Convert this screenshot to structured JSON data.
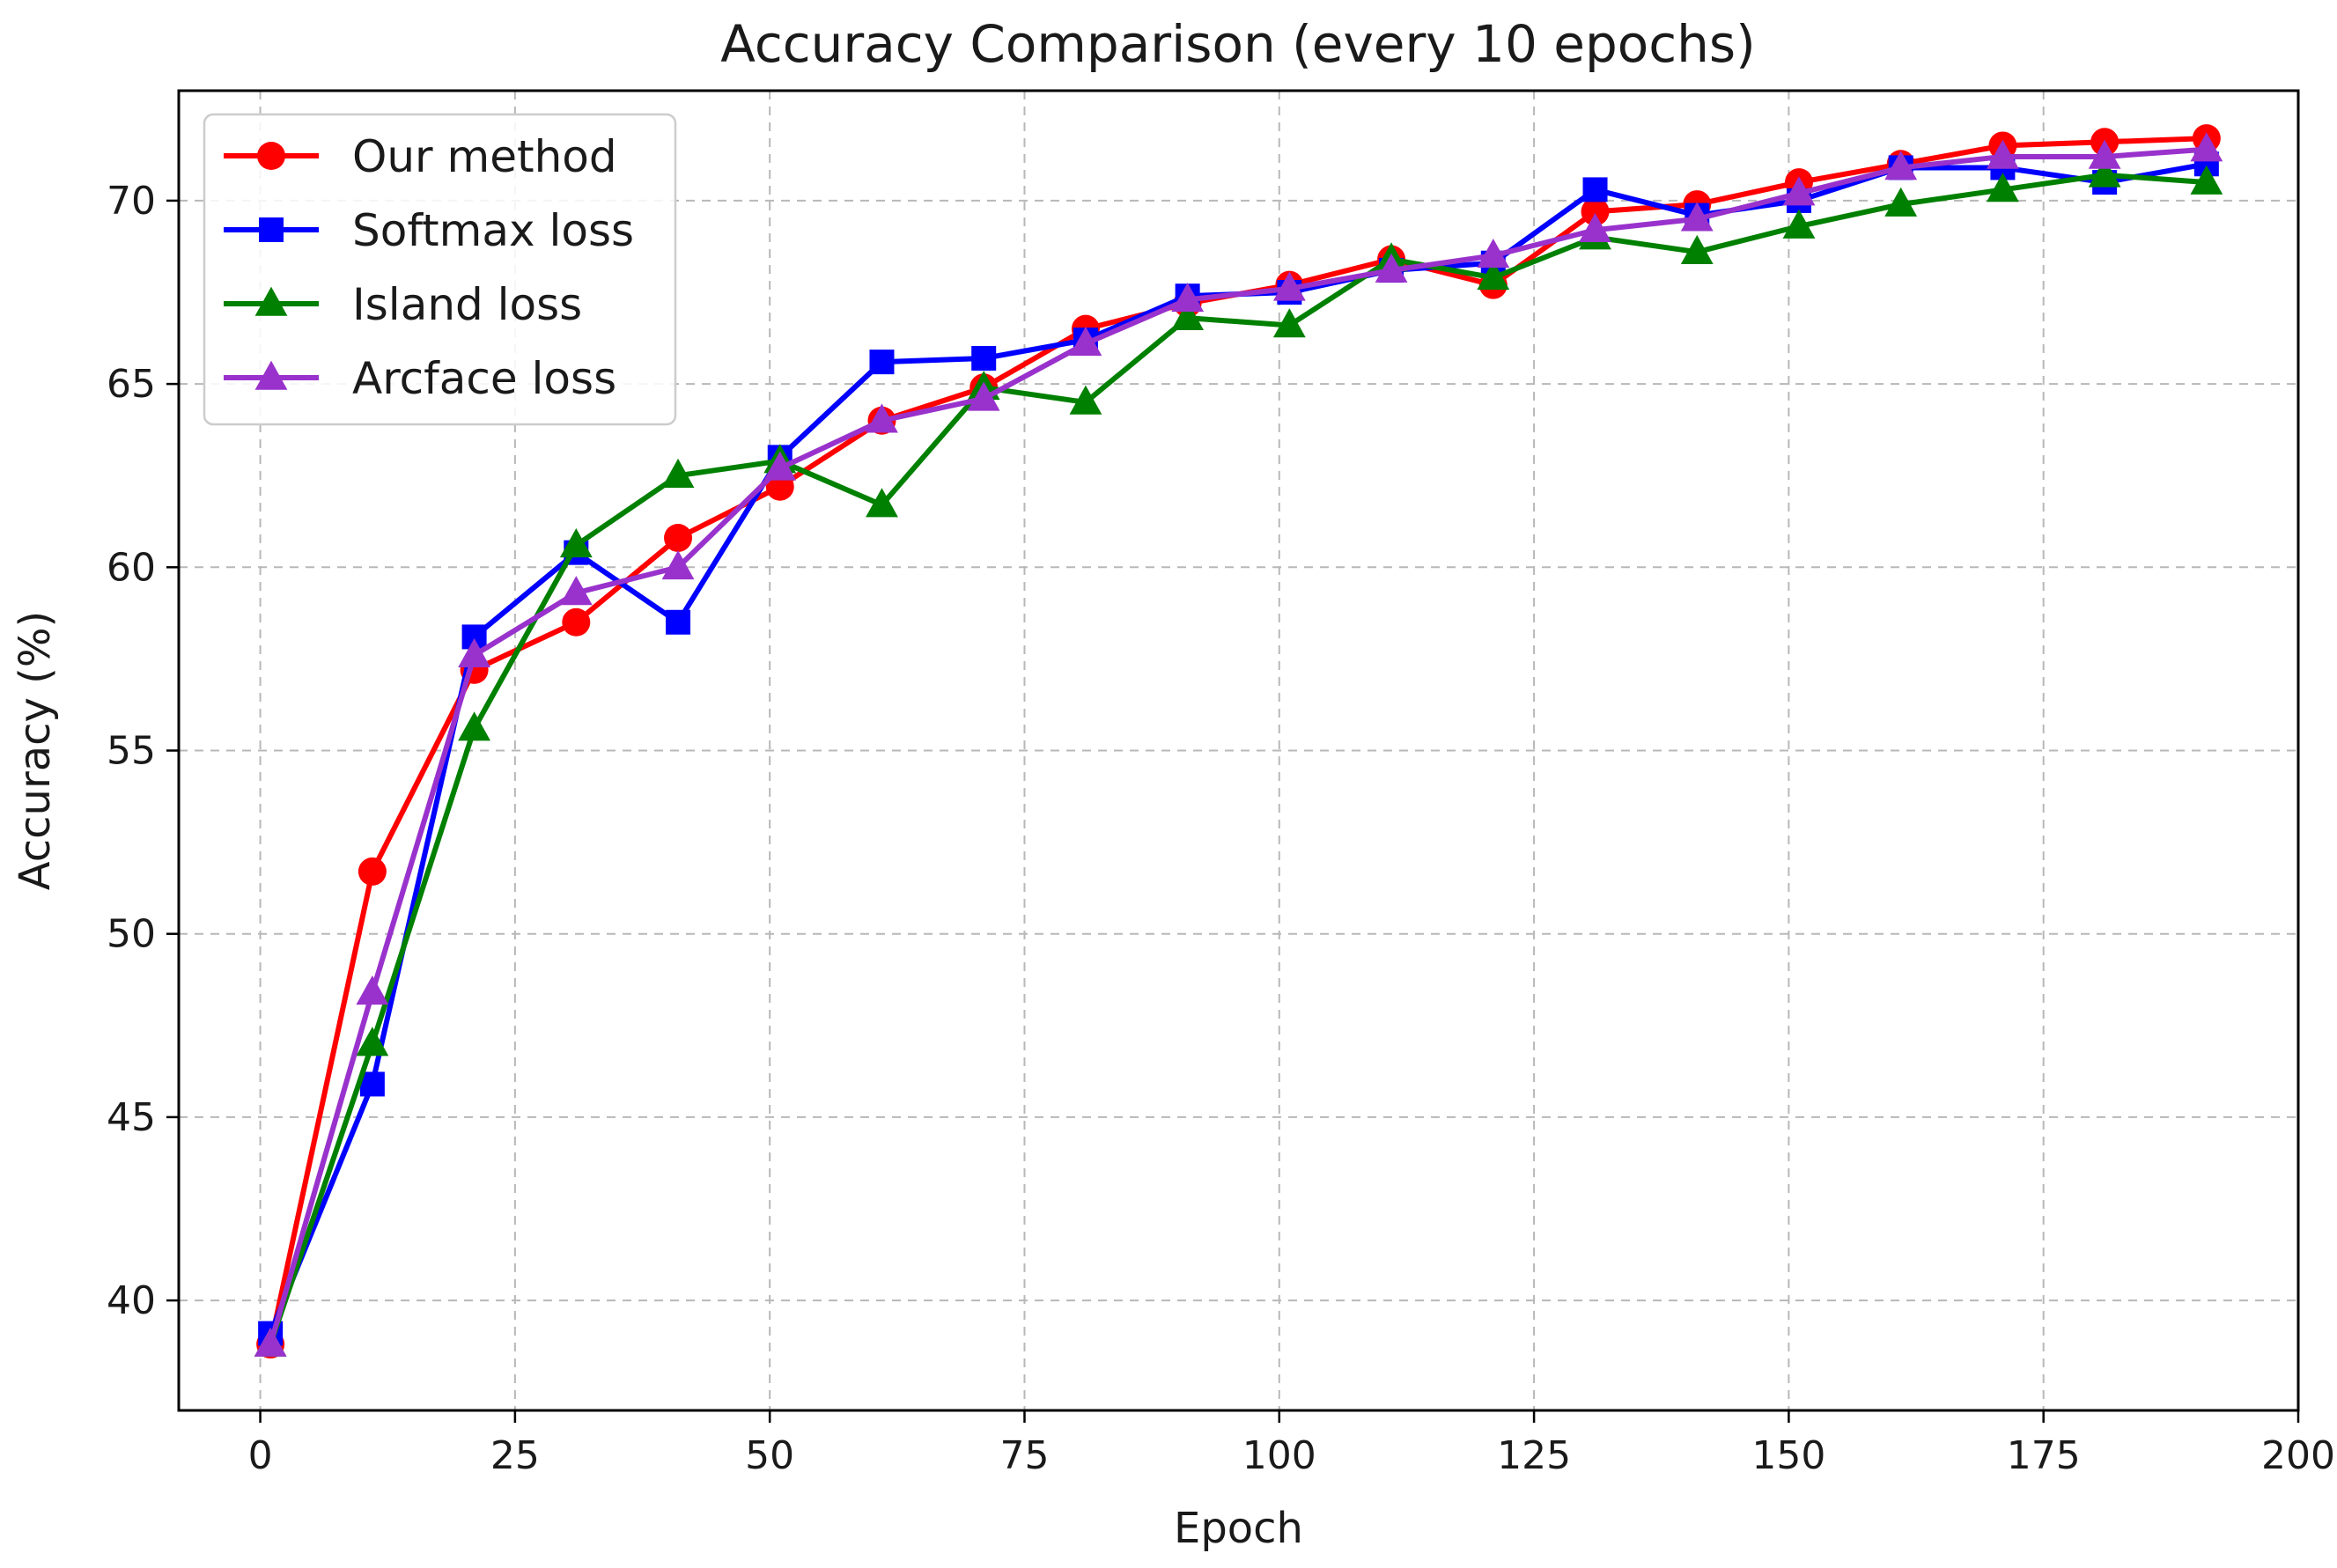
{
  "chart_data": {
    "type": "line",
    "title": "Accuracy Comparison (every 10 epochs)",
    "xlabel": "Epoch",
    "ylabel": "Accuracy (%)",
    "xlim": [
      -8,
      200
    ],
    "ylim": [
      37,
      73
    ],
    "xticks": [
      0,
      25,
      50,
      75,
      100,
      125,
      150,
      175,
      200
    ],
    "yticks": [
      40,
      45,
      50,
      55,
      60,
      65,
      70
    ],
    "grid": true,
    "legend_position": "upper-left",
    "x": [
      1,
      11,
      21,
      31,
      41,
      51,
      61,
      71,
      81,
      91,
      101,
      111,
      121,
      131,
      141,
      151,
      161,
      171,
      181,
      191
    ],
    "series": [
      {
        "name": "Our method",
        "color": "#ff0000",
        "marker": "circle",
        "values": [
          38.8,
          51.7,
          57.2,
          58.5,
          60.8,
          62.2,
          64.0,
          64.9,
          66.5,
          67.2,
          67.7,
          68.4,
          67.7,
          69.7,
          69.9,
          70.5,
          71.0,
          71.5,
          71.6,
          71.7
        ]
      },
      {
        "name": "Softmax loss",
        "color": "#0000ff",
        "marker": "square",
        "values": [
          39.1,
          45.9,
          58.1,
          60.4,
          58.5,
          63.0,
          65.6,
          65.7,
          66.2,
          67.4,
          67.5,
          68.1,
          68.3,
          70.3,
          69.6,
          70.0,
          70.9,
          70.9,
          70.5,
          71.0
        ]
      },
      {
        "name": "Island loss",
        "color": "#008000",
        "marker": "triangle",
        "values": [
          38.8,
          47.0,
          55.6,
          60.6,
          62.5,
          62.9,
          61.7,
          64.9,
          64.5,
          66.8,
          66.6,
          68.4,
          67.9,
          69.0,
          68.6,
          69.3,
          69.9,
          70.3,
          70.7,
          70.5
        ]
      },
      {
        "name": "Arcface loss",
        "color": "#9932cc",
        "marker": "triangle",
        "values": [
          38.8,
          48.4,
          57.6,
          59.3,
          60.0,
          62.7,
          64.0,
          64.6,
          66.1,
          67.3,
          67.6,
          68.1,
          68.5,
          69.2,
          69.5,
          70.2,
          70.9,
          71.2,
          71.2,
          71.4
        ]
      }
    ]
  }
}
